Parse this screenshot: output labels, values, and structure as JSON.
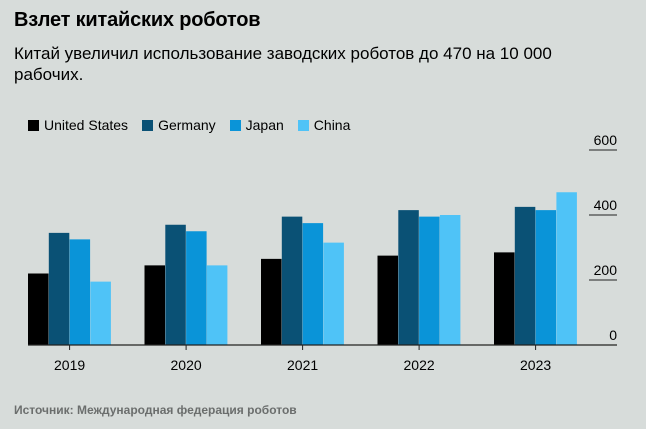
{
  "header": {
    "title": "Взлет китайских роботов",
    "subtitle": "Китай увеличил использование заводских роботов до 470 на 10 000 рабочих."
  },
  "source": "Источник: Международная федерация роботов",
  "colors": {
    "background": "#d7dcda",
    "United States": "#000000",
    "Germany": "#0a5175",
    "Japan": "#0a94d8",
    "China": "#4fc3f7"
  },
  "chart_data": {
    "type": "bar",
    "categories": [
      "2019",
      "2020",
      "2021",
      "2022",
      "2023"
    ],
    "series": [
      {
        "name": "United States",
        "values": [
          220,
          245,
          265,
          275,
          285
        ]
      },
      {
        "name": "Germany",
        "values": [
          345,
          370,
          395,
          415,
          425
        ]
      },
      {
        "name": "Japan",
        "values": [
          325,
          350,
          375,
          395,
          415
        ]
      },
      {
        "name": "China",
        "values": [
          195,
          245,
          315,
          400,
          470
        ]
      }
    ],
    "ylim": [
      0,
      600
    ],
    "yticks": [
      0,
      200,
      400,
      600
    ],
    "legend": "top-left",
    "y_axis_side": "right",
    "grid": true
  }
}
